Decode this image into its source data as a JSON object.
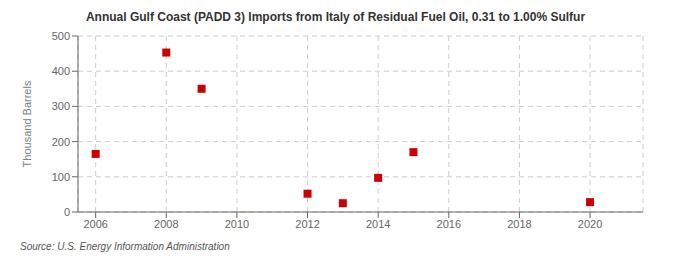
{
  "chart_data": {
    "type": "scatter",
    "title": "Annual Gulf Coast (PADD 3) Imports from Italy of Residual Fuel Oil, 0.31 to 1.00% Sulfur",
    "y_label": "Thousand Barrels",
    "annotations": [
      "Source: U.S. Energy Information Administration"
    ],
    "x": [
      2006,
      2008,
      2009,
      2012,
      2013,
      2014,
      2015,
      2020
    ],
    "values": [
      165,
      453,
      350,
      52,
      25,
      97,
      170,
      28
    ],
    "color": "#cc0000",
    "marker": "square",
    "xlim": [
      2005.5,
      2021.5
    ],
    "ylim": [
      0,
      500
    ],
    "xticks": [
      2006,
      2008,
      2010,
      2012,
      2014,
      2016,
      2018,
      2020
    ],
    "yticks": [
      0,
      100,
      200,
      300,
      400,
      500
    ],
    "grid": true
  }
}
